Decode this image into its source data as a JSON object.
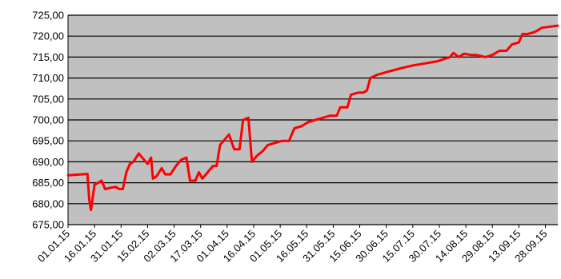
{
  "chart_data": {
    "type": "line",
    "title": "",
    "xlabel": "",
    "ylabel": "",
    "ylim": [
      675,
      725
    ],
    "grid": true,
    "legend": "none",
    "plot_background": "#c0c0c0",
    "line_color": "#ff0000",
    "y_ticks": [
      "675,00",
      "680,00",
      "685,00",
      "690,00",
      "695,00",
      "700,00",
      "705,00",
      "710,00",
      "715,00",
      "720,00",
      "725,00"
    ],
    "x_ticks": [
      "01.01.15",
      "16.01.15",
      "31.01.15",
      "15.02.15",
      "02.03.15",
      "17.03.15",
      "01.04.15",
      "16.04.15",
      "01.05.15",
      "16.05.15",
      "31.05.15",
      "15.06.15",
      "30.06.15",
      "15.07.15",
      "30.07.15",
      "14.08.15",
      "29.08.15",
      "13.09.15",
      "28.09.15"
    ],
    "x_range": [
      "01.01.15",
      "05.10.15"
    ],
    "series": [
      {
        "points": [
          [
            "01.01.15",
            686.8
          ],
          [
            "12.01.15",
            687.1
          ],
          [
            "13.01.15",
            681.0
          ],
          [
            "14.01.15",
            678.5
          ],
          [
            "16.01.15",
            684.5
          ],
          [
            "18.01.15",
            685.0
          ],
          [
            "20.01.15",
            685.5
          ],
          [
            "22.01.15",
            683.5
          ],
          [
            "25.01.15",
            683.8
          ],
          [
            "28.01.15",
            684.0
          ],
          [
            "30.01.15",
            683.5
          ],
          [
            "01.02.15",
            683.5
          ],
          [
            "03.02.15",
            687.5
          ],
          [
            "05.02.15",
            689.5
          ],
          [
            "07.02.15",
            690.0
          ],
          [
            "10.02.15",
            692.0
          ],
          [
            "13.02.15",
            690.5
          ],
          [
            "15.02.15",
            689.5
          ],
          [
            "17.02.15",
            691.0
          ],
          [
            "18.02.15",
            686.0
          ],
          [
            "20.02.15",
            686.5
          ],
          [
            "23.02.15",
            688.5
          ],
          [
            "25.02.15",
            687.0
          ],
          [
            "28.02.15",
            687.0
          ],
          [
            "03.03.15",
            689.0
          ],
          [
            "06.03.15",
            690.5
          ],
          [
            "09.03.15",
            691.0
          ],
          [
            "11.03.15",
            685.5
          ],
          [
            "14.03.15",
            685.5
          ],
          [
            "16.03.15",
            687.5
          ],
          [
            "18.03.15",
            686.0
          ],
          [
            "21.03.15",
            687.5
          ],
          [
            "24.03.15",
            689.0
          ],
          [
            "26.03.15",
            689.0
          ],
          [
            "28.03.15",
            694.0
          ],
          [
            "30.03.15",
            695.0
          ],
          [
            "02.04.15",
            696.5
          ],
          [
            "05.04.15",
            693.0
          ],
          [
            "08.04.15",
            693.0
          ],
          [
            "10.04.15",
            700.0
          ],
          [
            "13.04.15",
            700.5
          ],
          [
            "15.04.15",
            690.0
          ],
          [
            "18.04.15",
            691.5
          ],
          [
            "21.04.15",
            692.5
          ],
          [
            "24.04.15",
            694.0
          ],
          [
            "28.04.15",
            694.5
          ],
          [
            "02.05.15",
            695.0
          ],
          [
            "06.05.15",
            695.0
          ],
          [
            "09.05.15",
            698.0
          ],
          [
            "13.05.15",
            698.5
          ],
          [
            "17.05.15",
            699.5
          ],
          [
            "21.05.15",
            700.0
          ],
          [
            "25.05.15",
            700.5
          ],
          [
            "29.05.15",
            701.0
          ],
          [
            "02.06.15",
            701.0
          ],
          [
            "04.06.15",
            703.0
          ],
          [
            "08.06.15",
            703.0
          ],
          [
            "10.06.15",
            706.0
          ],
          [
            "14.06.15",
            706.5
          ],
          [
            "17.06.15",
            706.5
          ],
          [
            "19.06.15",
            707.0
          ],
          [
            "21.06.15",
            710.0
          ],
          [
            "25.06.15",
            710.8
          ],
          [
            "01.07.15",
            711.5
          ],
          [
            "08.07.15",
            712.3
          ],
          [
            "15.07.15",
            713.0
          ],
          [
            "22.07.15",
            713.5
          ],
          [
            "29.07.15",
            714.0
          ],
          [
            "05.08.15",
            715.0
          ],
          [
            "07.08.15",
            716.0
          ],
          [
            "10.08.15",
            715.0
          ],
          [
            "13.08.15",
            715.8
          ],
          [
            "17.08.15",
            715.5
          ],
          [
            "20.08.15",
            715.5
          ],
          [
            "25.08.15",
            715.0
          ],
          [
            "29.08.15",
            715.5
          ],
          [
            "02.09.15",
            716.5
          ],
          [
            "06.09.15",
            716.5
          ],
          [
            "09.09.15",
            718.0
          ],
          [
            "13.09.15",
            718.5
          ],
          [
            "15.09.15",
            720.5
          ],
          [
            "18.09.15",
            720.5
          ],
          [
            "22.09.15",
            721.0
          ],
          [
            "26.09.15",
            722.0
          ],
          [
            "05.10.15",
            722.5
          ]
        ]
      }
    ]
  }
}
